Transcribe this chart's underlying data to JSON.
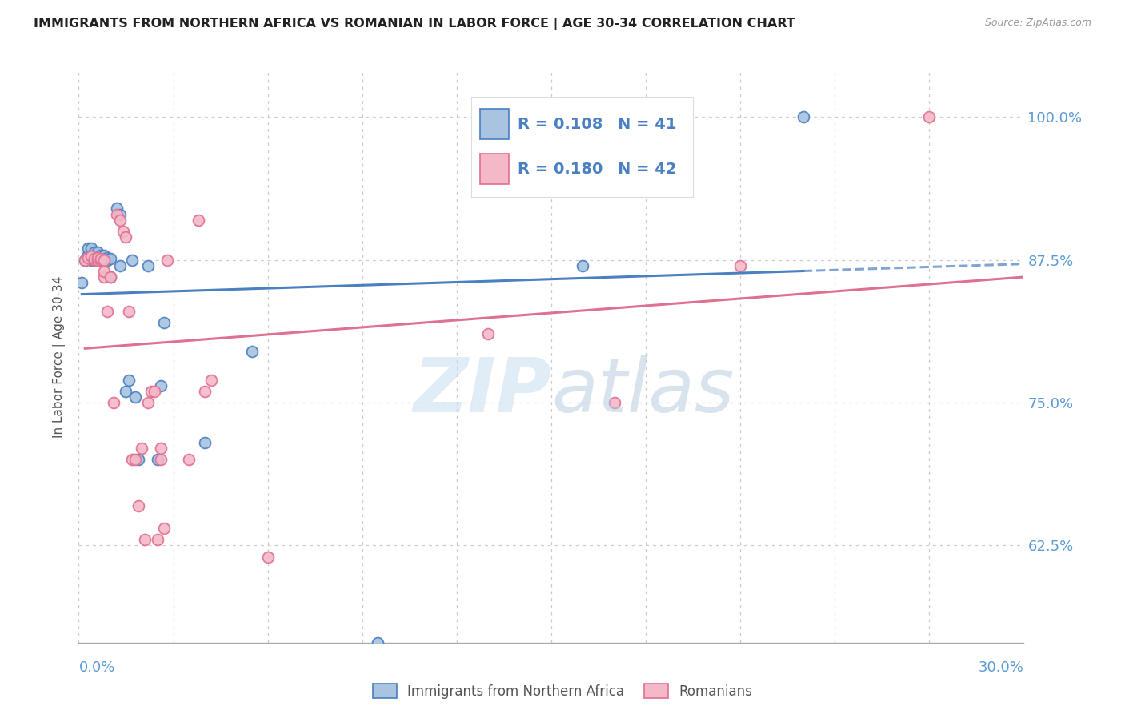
{
  "title": "IMMIGRANTS FROM NORTHERN AFRICA VS ROMANIAN IN LABOR FORCE | AGE 30-34 CORRELATION CHART",
  "source": "Source: ZipAtlas.com",
  "ylabel": "In Labor Force | Age 30-34",
  "ytick_labels": [
    "62.5%",
    "75.0%",
    "87.5%",
    "100.0%"
  ],
  "ytick_values": [
    0.625,
    0.75,
    0.875,
    1.0
  ],
  "xlim": [
    0.0,
    0.3
  ],
  "ylim": [
    0.54,
    1.04
  ],
  "blue_r": "0.108",
  "blue_n": "41",
  "pink_r": "0.180",
  "pink_n": "42",
  "blue_color": "#a8c4e0",
  "pink_color": "#f4b8c8",
  "blue_line_color": "#4a7fc1",
  "pink_line_color": "#e07090",
  "axis_color": "#5b9bd5",
  "legend_text_color": "#4a7fc1",
  "watermark_zip": "ZIP",
  "watermark_atlas": "atlas",
  "blue_x": [
    0.001,
    0.002,
    0.003,
    0.003,
    0.004,
    0.004,
    0.004,
    0.005,
    0.005,
    0.005,
    0.006,
    0.006,
    0.006,
    0.007,
    0.007,
    0.007,
    0.008,
    0.008,
    0.008,
    0.009,
    0.009,
    0.01,
    0.01,
    0.012,
    0.013,
    0.013,
    0.015,
    0.016,
    0.017,
    0.018,
    0.019,
    0.022,
    0.025,
    0.026,
    0.04,
    0.055,
    0.095,
    0.14,
    0.16,
    0.23,
    0.027
  ],
  "blue_y": [
    0.855,
    0.875,
    0.88,
    0.885,
    0.875,
    0.88,
    0.885,
    0.875,
    0.878,
    0.882,
    0.875,
    0.878,
    0.882,
    0.875,
    0.877,
    0.879,
    0.875,
    0.877,
    0.879,
    0.875,
    0.877,
    0.86,
    0.876,
    0.92,
    0.915,
    0.87,
    0.76,
    0.77,
    0.875,
    0.755,
    0.7,
    0.87,
    0.7,
    0.765,
    0.715,
    0.795,
    0.54,
    0.94,
    0.87,
    1.0,
    0.82
  ],
  "pink_x": [
    0.002,
    0.003,
    0.004,
    0.005,
    0.005,
    0.006,
    0.006,
    0.007,
    0.007,
    0.008,
    0.008,
    0.008,
    0.009,
    0.01,
    0.011,
    0.012,
    0.013,
    0.014,
    0.015,
    0.016,
    0.017,
    0.018,
    0.019,
    0.02,
    0.021,
    0.022,
    0.023,
    0.024,
    0.025,
    0.026,
    0.026,
    0.027,
    0.028,
    0.035,
    0.038,
    0.04,
    0.042,
    0.06,
    0.13,
    0.17,
    0.21,
    0.27
  ],
  "pink_y": [
    0.875,
    0.877,
    0.878,
    0.875,
    0.876,
    0.875,
    0.877,
    0.875,
    0.876,
    0.875,
    0.86,
    0.865,
    0.83,
    0.86,
    0.75,
    0.915,
    0.91,
    0.9,
    0.895,
    0.83,
    0.7,
    0.7,
    0.66,
    0.71,
    0.63,
    0.75,
    0.76,
    0.76,
    0.63,
    0.7,
    0.71,
    0.64,
    0.875,
    0.7,
    0.91,
    0.76,
    0.77,
    0.615,
    0.81,
    0.75,
    0.87,
    1.0
  ]
}
